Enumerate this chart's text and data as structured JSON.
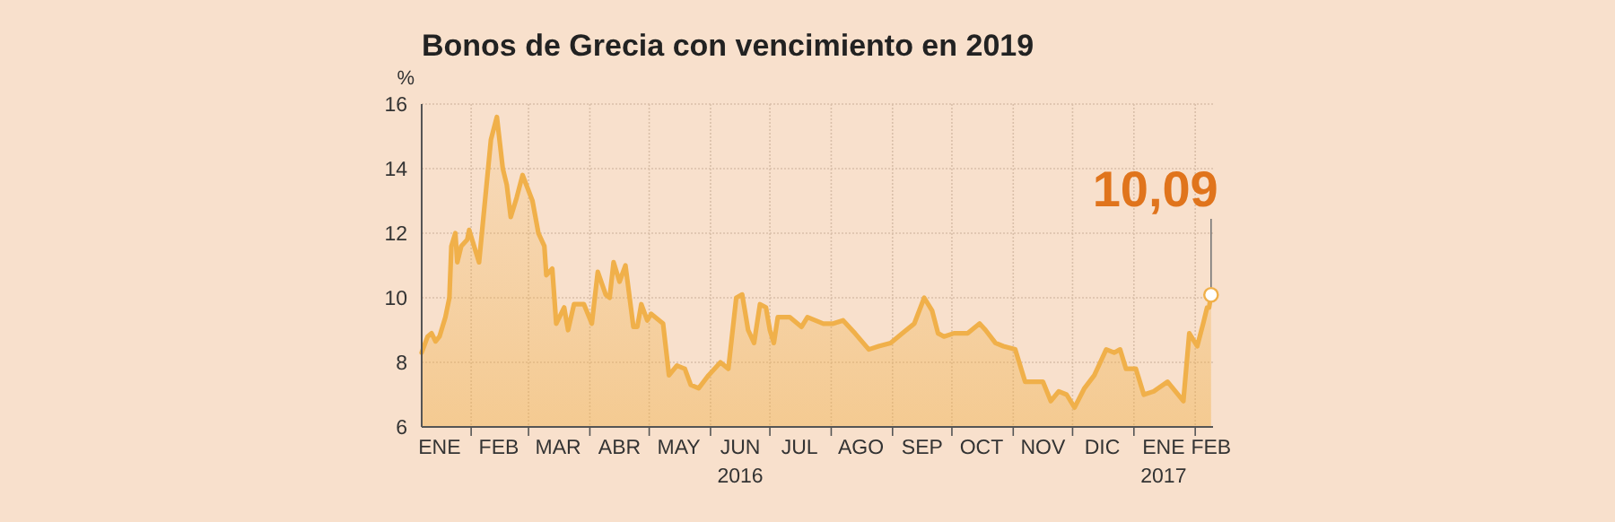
{
  "chart_data": {
    "type": "area",
    "title": "Bonos de Grecia con vencimiento en 2019",
    "ylabel": "%",
    "x": [
      "2016-01-07",
      "2016-01-10",
      "2016-01-12",
      "2016-01-14",
      "2016-01-16",
      "2016-01-19",
      "2016-01-21",
      "2016-01-22",
      "2016-01-24",
      "2016-01-25",
      "2016-01-27",
      "2016-01-30",
      "2016-01-31",
      "2016-02-05",
      "2016-02-11",
      "2016-02-14",
      "2016-02-17",
      "2016-02-19",
      "2016-02-21",
      "2016-02-24",
      "2016-02-27",
      "2016-03-03",
      "2016-03-06",
      "2016-03-09",
      "2016-03-10",
      "2016-03-13",
      "2016-03-15",
      "2016-03-19",
      "2016-03-21",
      "2016-03-24",
      "2016-03-29",
      "2016-04-02",
      "2016-04-05",
      "2016-04-09",
      "2016-04-11",
      "2016-04-13",
      "2016-04-16",
      "2016-04-19",
      "2016-04-23",
      "2016-04-25",
      "2016-04-27",
      "2016-04-30",
      "2016-05-02",
      "2016-05-08",
      "2016-05-11",
      "2016-05-15",
      "2016-05-19",
      "2016-05-22",
      "2016-05-26",
      "2016-05-31",
      "2016-06-06",
      "2016-06-10",
      "2016-06-14",
      "2016-06-17",
      "2016-06-20",
      "2016-06-23",
      "2016-06-26",
      "2016-06-29",
      "2016-07-01",
      "2016-07-03",
      "2016-07-05",
      "2016-07-11",
      "2016-07-17",
      "2016-07-20",
      "2016-07-28",
      "2016-08-02",
      "2016-08-07",
      "2016-08-13",
      "2016-08-20",
      "2016-08-25",
      "2016-08-31",
      "2016-09-06",
      "2016-09-12",
      "2016-09-17",
      "2016-09-21",
      "2016-09-24",
      "2016-09-27",
      "2016-10-02",
      "2016-10-09",
      "2016-10-15",
      "2016-10-18",
      "2016-10-23",
      "2016-10-27",
      "2016-11-02",
      "2016-11-07",
      "2016-11-11",
      "2016-11-16",
      "2016-11-20",
      "2016-11-24",
      "2016-11-28",
      "2016-12-02",
      "2016-12-07",
      "2016-12-12",
      "2016-12-15",
      "2016-12-18",
      "2016-12-22",
      "2016-12-25",
      "2016-12-28",
      "2017-01-02",
      "2017-01-06",
      "2017-01-11",
      "2017-01-18",
      "2017-01-26",
      "2017-01-29",
      "2017-02-02",
      "2017-02-05",
      "2017-02-07",
      "2017-02-08",
      "2017-02-09"
    ],
    "series": [
      {
        "color": "#f0b04a",
        "values": [
          8.3,
          8.8,
          8.9,
          8.65,
          8.8,
          9.4,
          10.0,
          11.6,
          12.0,
          11.1,
          11.6,
          11.8,
          12.1,
          11.1,
          14.9,
          15.6,
          14.0,
          13.5,
          12.5,
          13.1,
          13.8,
          13.0,
          12.0,
          11.6,
          10.7,
          10.9,
          9.2,
          9.7,
          9.0,
          9.8,
          9.8,
          9.2,
          10.8,
          10.1,
          10.0,
          11.1,
          10.5,
          11.0,
          9.1,
          9.1,
          9.8,
          9.3,
          9.5,
          9.2,
          7.6,
          7.9,
          7.8,
          7.3,
          7.2,
          7.6,
          8.0,
          7.8,
          10.0,
          10.1,
          9.0,
          8.6,
          9.8,
          9.7,
          9.0,
          8.6,
          9.4,
          9.4,
          9.1,
          9.4,
          9.2,
          9.2,
          9.3,
          8.9,
          8.4,
          8.5,
          8.6,
          8.9,
          9.2,
          10.0,
          9.6,
          8.9,
          8.8,
          8.9,
          8.9,
          9.2,
          9.0,
          8.6,
          8.5,
          8.4,
          7.4,
          7.4,
          7.4,
          6.8,
          7.1,
          7.0,
          6.6,
          7.2,
          7.6,
          8.0,
          8.4,
          8.3,
          8.4,
          7.8,
          7.8,
          7.0,
          7.1,
          7.4,
          6.8,
          8.9,
          8.5,
          9.2,
          9.7,
          9.7,
          10.09
        ]
      }
    ],
    "xlim": [
      "2016-01-07",
      "2017-02-10"
    ],
    "xticks": [
      {
        "value": "2016-01-16",
        "label": "ENE"
      },
      {
        "value": "2016-02-01",
        "label": null
      },
      {
        "value": "2016-02-15",
        "label": "FEB"
      },
      {
        "value": "2016-03-01",
        "label": null
      },
      {
        "value": "2016-03-16",
        "label": "MAR"
      },
      {
        "value": "2016-04-01",
        "label": null
      },
      {
        "value": "2016-04-16",
        "label": "ABR"
      },
      {
        "value": "2016-05-01",
        "label": null
      },
      {
        "value": "2016-05-16",
        "label": "MAY"
      },
      {
        "value": "2016-06-01",
        "label": null
      },
      {
        "value": "2016-06-16",
        "label": "JUN\n2016"
      },
      {
        "value": "2016-07-01",
        "label": null
      },
      {
        "value": "2016-07-16",
        "label": "JUL"
      },
      {
        "value": "2016-08-01",
        "label": null
      },
      {
        "value": "2016-08-16",
        "label": "AGO"
      },
      {
        "value": "2016-09-01",
        "label": null
      },
      {
        "value": "2016-09-16",
        "label": "SEP"
      },
      {
        "value": "2016-10-01",
        "label": null
      },
      {
        "value": "2016-10-16",
        "label": "OCT"
      },
      {
        "value": "2016-11-01",
        "label": null
      },
      {
        "value": "2016-11-16",
        "label": "NOV"
      },
      {
        "value": "2016-12-01",
        "label": null
      },
      {
        "value": "2016-12-16",
        "label": "DIC"
      },
      {
        "value": "2017-01-01",
        "label": null
      },
      {
        "value": "2017-01-16",
        "label": "ENE\n2017"
      },
      {
        "value": "2017-02-01",
        "label": null
      },
      {
        "value": "2017-02-09",
        "label": "FEB"
      }
    ],
    "ylim": [
      6,
      16
    ],
    "yticks": [
      6,
      8,
      10,
      12,
      14,
      16
    ],
    "grid": true,
    "marker": "none",
    "annotations": [
      {
        "text": "10,09",
        "x": "2017-02-09",
        "y": 10.09
      }
    ]
  }
}
